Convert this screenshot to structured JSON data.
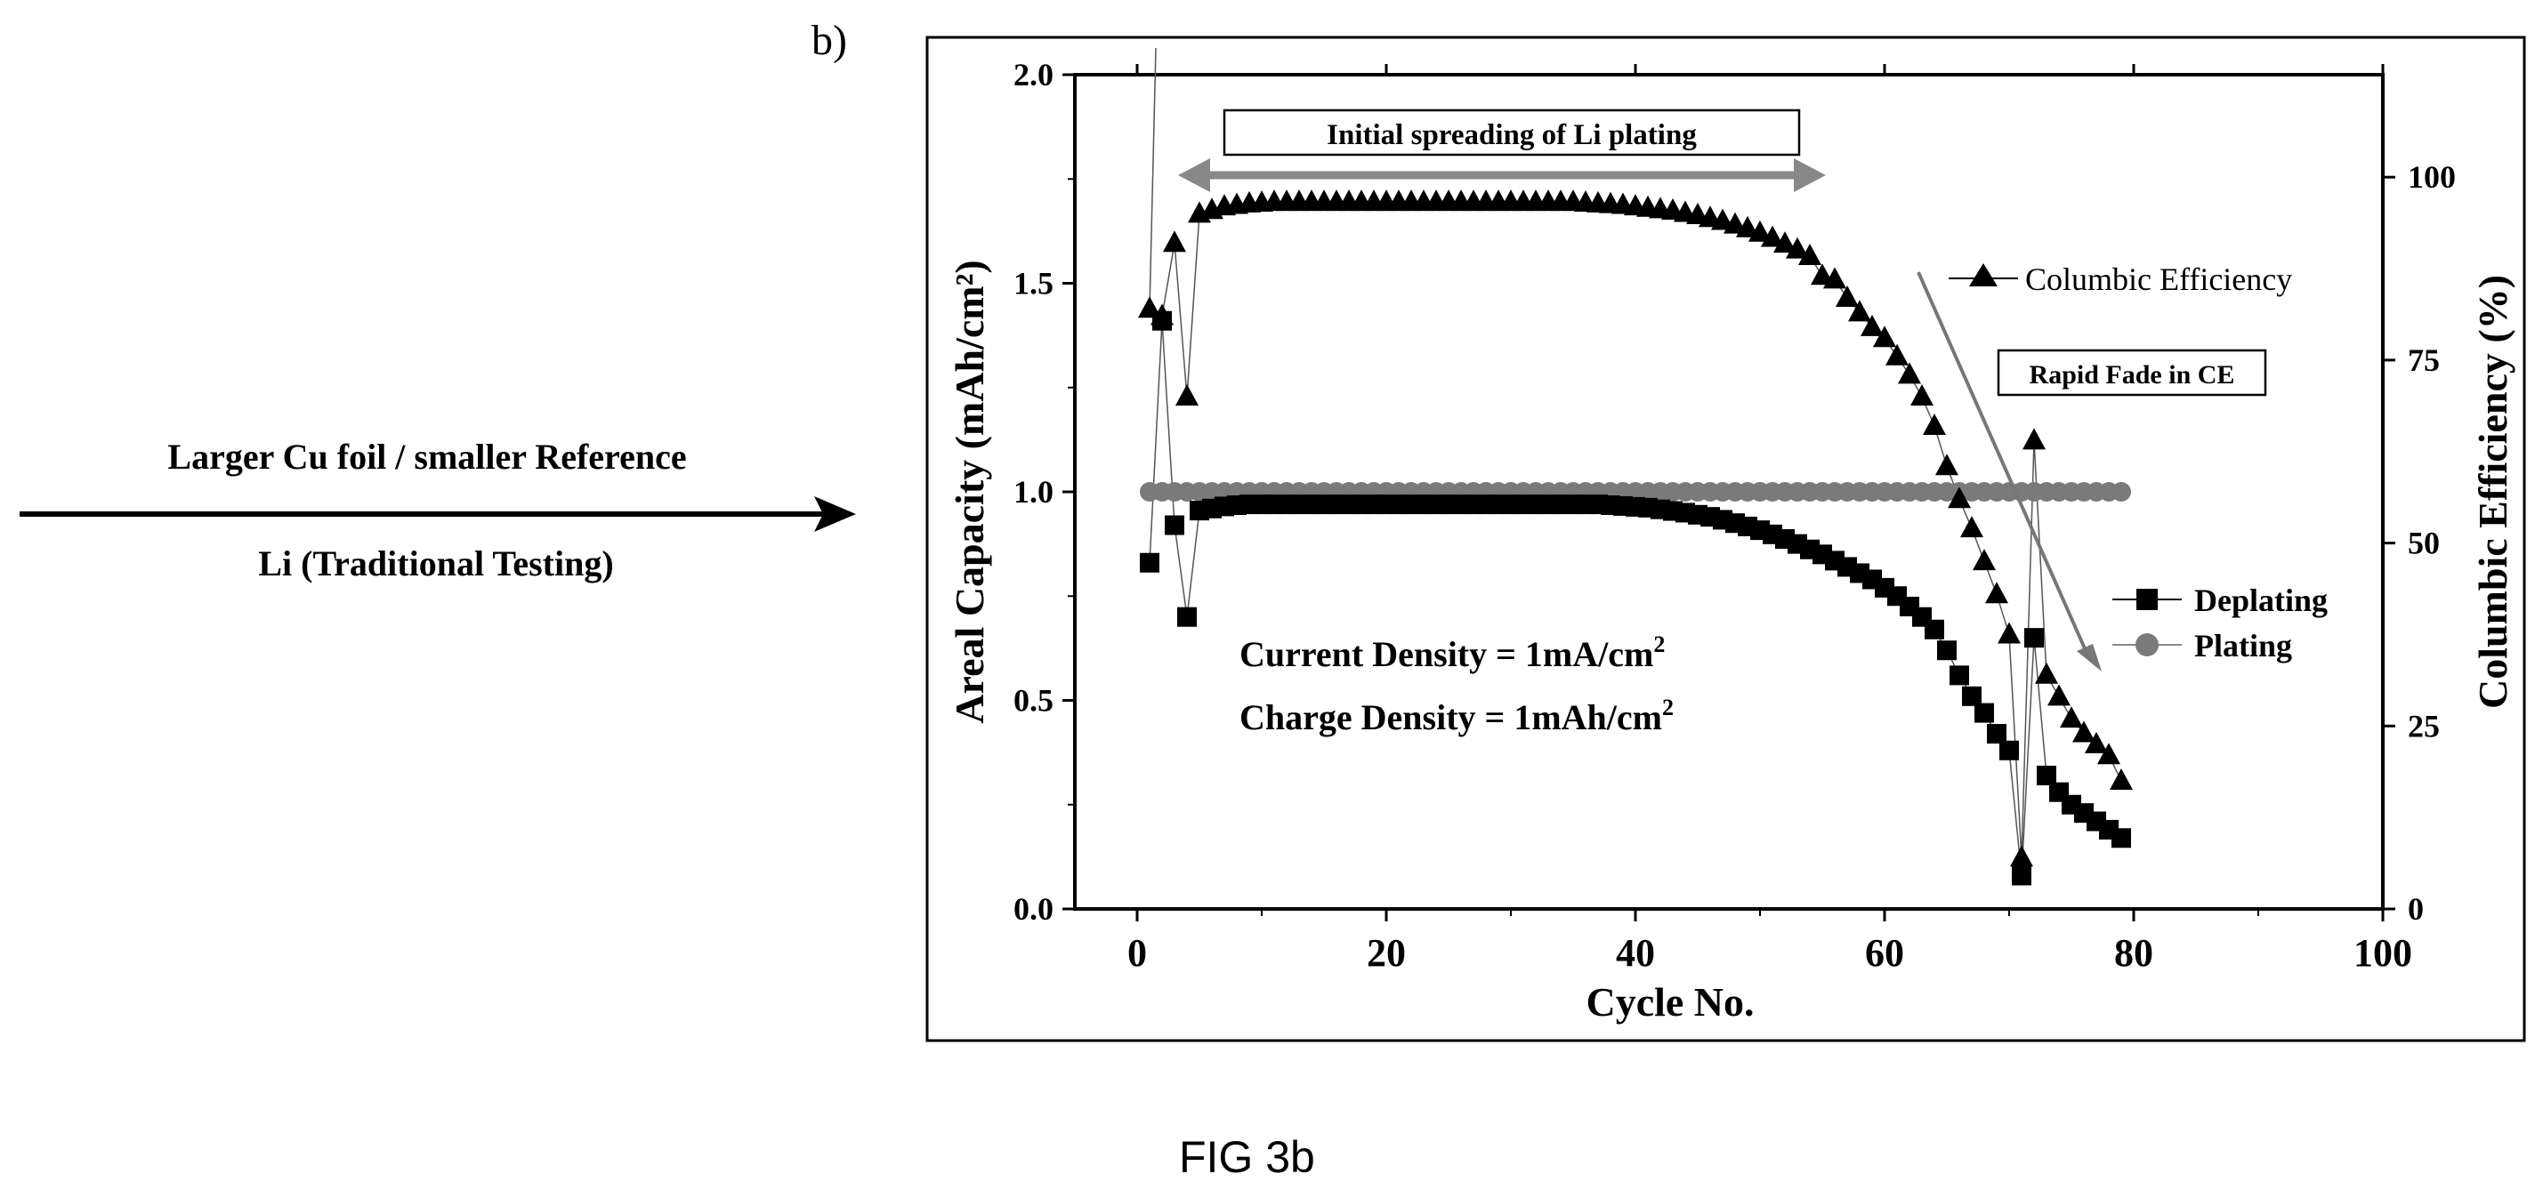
{
  "panel_label": "b)",
  "left_annotation": {
    "line1": "Larger Cu foil / smaller Reference",
    "line2": "Li (Traditional Testing)"
  },
  "figure_caption": "FIG 3b",
  "colors": {
    "ink": "#000000",
    "plating": "#7a7a7a",
    "arrow_gray": "#808080"
  },
  "chart_data": {
    "type": "scatter",
    "xlabel": "Cycle No.",
    "ylabel_left": "Areal Capacity (mAh/cm²)",
    "ylabel_right": "Columbic Efficiency (%)",
    "xlim": [
      -5,
      100
    ],
    "ylim_left": [
      0,
      2.0
    ],
    "ylim_right": [
      0,
      114
    ],
    "x_ticks": [
      0,
      20,
      40,
      60,
      80,
      100
    ],
    "y_left_ticks": [
      "0.0",
      "0.5",
      "1.0",
      "1.5",
      "2.0"
    ],
    "y_right_ticks": [
      0,
      25,
      50,
      75,
      100
    ],
    "annotations": {
      "spreading": "Initial spreading of Li plating",
      "fade": "Rapid Fade in CE",
      "current_density": "Current Density = 1mA/cm",
      "charge_density": "Charge Density = 1mAh/cm",
      "superscript": "2"
    },
    "legend": {
      "ce": "Columbic Efficiency",
      "deplating": "Deplating",
      "plating": "Plating"
    },
    "series": [
      {
        "name": "Columbic Efficiency",
        "axis": "right",
        "marker": "triangle",
        "x": [
          1,
          2,
          3,
          4,
          5,
          6,
          7,
          8,
          9,
          10,
          11,
          12,
          13,
          14,
          15,
          16,
          17,
          18,
          19,
          20,
          21,
          22,
          23,
          24,
          25,
          26,
          27,
          28,
          29,
          30,
          31,
          32,
          33,
          34,
          35,
          36,
          37,
          38,
          39,
          40,
          41,
          42,
          43,
          44,
          45,
          46,
          47,
          48,
          49,
          50,
          51,
          52,
          53,
          54,
          55,
          56,
          57,
          58,
          59,
          60,
          61,
          62,
          63,
          64,
          65,
          66,
          67,
          68,
          69,
          70,
          71,
          72,
          73,
          74,
          75,
          76,
          77,
          78,
          79
        ],
        "values": [
          82,
          81,
          91,
          70,
          95,
          95.5,
          96,
          96.2,
          96.4,
          96.5,
          96.6,
          96.6,
          96.6,
          96.6,
          96.6,
          96.6,
          96.6,
          96.6,
          96.6,
          96.6,
          96.6,
          96.6,
          96.6,
          96.6,
          96.6,
          96.6,
          96.6,
          96.6,
          96.6,
          96.6,
          96.6,
          96.6,
          96.6,
          96.6,
          96.6,
          96.5,
          96.4,
          96.3,
          96.2,
          96.0,
          95.8,
          95.6,
          95.4,
          95.1,
          94.8,
          94.4,
          94.0,
          93.5,
          93.0,
          92.4,
          91.7,
          90.9,
          90.1,
          89.2,
          86.5,
          86.0,
          83.5,
          81.5,
          79.5,
          78.0,
          75.5,
          73.0,
          70.0,
          66.0,
          60.5,
          56.0,
          52.0,
          47.5,
          43.0,
          37.5,
          7,
          64,
          32,
          29,
          26,
          24,
          22.5,
          21,
          17.5
        ]
      },
      {
        "name": "Deplating",
        "axis": "left",
        "marker": "square",
        "x": [
          1,
          2,
          3,
          4,
          5,
          6,
          7,
          8,
          9,
          10,
          11,
          12,
          13,
          14,
          15,
          16,
          17,
          18,
          19,
          20,
          21,
          22,
          23,
          24,
          25,
          26,
          27,
          28,
          29,
          30,
          31,
          32,
          33,
          34,
          35,
          36,
          37,
          38,
          39,
          40,
          41,
          42,
          43,
          44,
          45,
          46,
          47,
          48,
          49,
          50,
          51,
          52,
          53,
          54,
          55,
          56,
          57,
          58,
          59,
          60,
          61,
          62,
          63,
          64,
          65,
          66,
          67,
          68,
          69,
          70,
          71,
          72,
          73,
          74,
          75,
          76,
          77,
          78,
          79
        ],
        "values": [
          0.83,
          1.41,
          0.92,
          0.7,
          0.955,
          0.96,
          0.965,
          0.968,
          0.97,
          0.97,
          0.97,
          0.97,
          0.97,
          0.97,
          0.97,
          0.97,
          0.97,
          0.97,
          0.97,
          0.97,
          0.97,
          0.97,
          0.97,
          0.97,
          0.97,
          0.97,
          0.97,
          0.97,
          0.97,
          0.97,
          0.97,
          0.97,
          0.97,
          0.97,
          0.97,
          0.97,
          0.97,
          0.968,
          0.966,
          0.964,
          0.962,
          0.958,
          0.954,
          0.95,
          0.945,
          0.94,
          0.933,
          0.925,
          0.917,
          0.908,
          0.898,
          0.887,
          0.875,
          0.862,
          0.85,
          0.835,
          0.82,
          0.805,
          0.79,
          0.77,
          0.75,
          0.725,
          0.7,
          0.67,
          0.62,
          0.56,
          0.51,
          0.47,
          0.42,
          0.38,
          0.08,
          0.65,
          0.32,
          0.28,
          0.25,
          0.23,
          0.21,
          0.19,
          0.17
        ]
      },
      {
        "name": "Plating",
        "axis": "left",
        "marker": "circle",
        "x_start": 1,
        "x_end": 79,
        "value": 1.0
      }
    ]
  }
}
